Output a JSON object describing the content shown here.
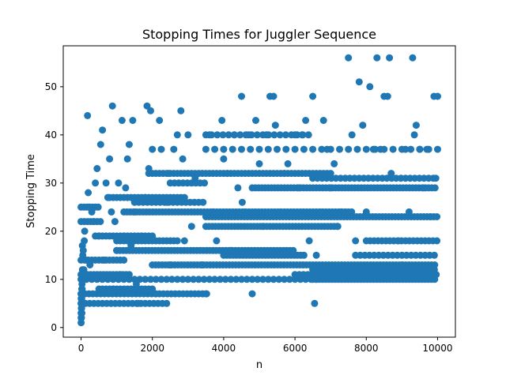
{
  "chart_data": {
    "type": "scatter",
    "title": "Stopping Times for Juggler Sequence",
    "xlabel": "n",
    "ylabel": "Stopping Time",
    "xlim": [
      -500,
      10500
    ],
    "ylim": [
      -2,
      58.5
    ],
    "xticks": [
      0,
      2000,
      4000,
      6000,
      8000,
      10000
    ],
    "yticks": [
      0,
      10,
      20,
      30,
      40,
      50
    ],
    "grid": false,
    "legend": "none",
    "color": "#1f77b4",
    "points": [
      [
        1,
        1
      ],
      [
        2,
        3
      ],
      [
        3,
        6
      ],
      [
        4,
        2
      ],
      [
        5,
        5
      ],
      [
        6,
        2
      ],
      [
        7,
        4
      ],
      [
        8,
        2
      ],
      [
        9,
        7
      ],
      [
        10,
        7
      ],
      [
        11,
        4
      ],
      [
        12,
        7
      ],
      [
        13,
        4
      ],
      [
        14,
        7
      ],
      [
        15,
        4
      ],
      [
        16,
        3
      ],
      [
        17,
        6
      ],
      [
        18,
        3
      ],
      [
        19,
        8
      ],
      [
        20,
        3
      ],
      [
        25,
        9
      ],
      [
        30,
        8
      ],
      [
        37,
        17
      ],
      [
        40,
        12
      ],
      [
        48,
        15
      ],
      [
        50,
        11
      ],
      [
        60,
        16
      ],
      [
        77,
        12
      ],
      [
        90,
        18
      ],
      [
        100,
        20
      ],
      [
        120,
        10
      ],
      [
        150,
        14
      ],
      [
        180,
        44
      ],
      [
        200,
        28
      ],
      [
        210,
        25
      ],
      [
        250,
        13
      ],
      [
        300,
        24
      ],
      [
        350,
        22
      ],
      [
        400,
        30
      ],
      [
        450,
        33
      ],
      [
        500,
        19
      ],
      [
        550,
        38
      ],
      [
        600,
        41
      ],
      [
        650,
        14
      ],
      [
        700,
        30
      ],
      [
        750,
        27
      ],
      [
        800,
        35
      ],
      [
        850,
        24
      ],
      [
        880,
        46
      ],
      [
        900,
        8
      ],
      [
        950,
        22
      ],
      [
        1000,
        16
      ],
      [
        1050,
        30
      ],
      [
        1100,
        11
      ],
      [
        1150,
        43
      ],
      [
        1200,
        19
      ],
      [
        1250,
        29
      ],
      [
        1300,
        35
      ],
      [
        1350,
        38
      ],
      [
        1400,
        17
      ],
      [
        1450,
        43
      ],
      [
        1500,
        24
      ],
      [
        1550,
        9
      ],
      [
        1600,
        5
      ],
      [
        1700,
        19
      ],
      [
        1800,
        27
      ],
      [
        1850,
        46
      ],
      [
        1900,
        33
      ],
      [
        1950,
        45
      ],
      [
        2000,
        37
      ],
      [
        2100,
        7
      ],
      [
        2200,
        43
      ],
      [
        2250,
        37
      ],
      [
        2400,
        26
      ],
      [
        2450,
        32
      ],
      [
        2500,
        13
      ],
      [
        2600,
        37
      ],
      [
        2700,
        40
      ],
      [
        2800,
        45
      ],
      [
        2850,
        35
      ],
      [
        2900,
        18
      ],
      [
        3000,
        40
      ],
      [
        3100,
        21
      ],
      [
        3200,
        31
      ],
      [
        3400,
        13
      ],
      [
        3500,
        7
      ],
      [
        3600,
        40
      ],
      [
        3700,
        24
      ],
      [
        3800,
        18
      ],
      [
        3950,
        43
      ],
      [
        4000,
        35
      ],
      [
        4100,
        32
      ],
      [
        4200,
        16
      ],
      [
        4300,
        40
      ],
      [
        4400,
        29
      ],
      [
        4500,
        48
      ],
      [
        4520,
        26
      ],
      [
        4600,
        24
      ],
      [
        4700,
        40
      ],
      [
        4800,
        7
      ],
      [
        4900,
        43
      ],
      [
        5000,
        34
      ],
      [
        5100,
        21
      ],
      [
        5200,
        40
      ],
      [
        5300,
        48
      ],
      [
        5400,
        48
      ],
      [
        5450,
        42
      ],
      [
        5600,
        24
      ],
      [
        5700,
        32
      ],
      [
        5800,
        34
      ],
      [
        6000,
        40
      ],
      [
        6100,
        29
      ],
      [
        6200,
        40
      ],
      [
        6300,
        43
      ],
      [
        6400,
        18
      ],
      [
        6500,
        48
      ],
      [
        6550,
        5
      ],
      [
        6600,
        15
      ],
      [
        6700,
        24
      ],
      [
        6800,
        43
      ],
      [
        6900,
        37
      ],
      [
        7000,
        29
      ],
      [
        7100,
        34
      ],
      [
        7200,
        21
      ],
      [
        7300,
        24
      ],
      [
        7500,
        56
      ],
      [
        7600,
        40
      ],
      [
        7700,
        18
      ],
      [
        7800,
        51
      ],
      [
        7900,
        42
      ],
      [
        8000,
        24
      ],
      [
        8100,
        50
      ],
      [
        8200,
        37
      ],
      [
        8300,
        56
      ],
      [
        8400,
        37
      ],
      [
        8500,
        48
      ],
      [
        8600,
        48
      ],
      [
        8650,
        56
      ],
      [
        8700,
        32
      ],
      [
        8900,
        18
      ],
      [
        9000,
        13
      ],
      [
        9100,
        37
      ],
      [
        9200,
        24
      ],
      [
        9300,
        56
      ],
      [
        9350,
        40
      ],
      [
        9400,
        42
      ],
      [
        9500,
        37
      ],
      [
        9600,
        29
      ],
      [
        9700,
        37
      ],
      [
        9800,
        23
      ],
      [
        9900,
        48
      ],
      [
        9950,
        31
      ],
      [
        10000,
        48
      ]
    ],
    "bands": [
      {
        "x": [
          0,
          2400
        ],
        "y": 5,
        "step": 120
      },
      {
        "x": [
          0,
          3600
        ],
        "y": 7,
        "step": 110
      },
      {
        "x": [
          500,
          2000
        ],
        "y": 8,
        "step": 100
      },
      {
        "x": [
          0,
          6600
        ],
        "y": 10,
        "step": 150
      },
      {
        "x": [
          6500,
          10000
        ],
        "y": 10,
        "step": 90
      },
      {
        "x": [
          0,
          1400
        ],
        "y": 11,
        "step": 90
      },
      {
        "x": [
          6000,
          10000
        ],
        "y": 11,
        "step": 120
      },
      {
        "x": [
          6500,
          10000
        ],
        "y": 12,
        "step": 110
      },
      {
        "x": [
          2000,
          10000
        ],
        "y": 13,
        "step": 90
      },
      {
        "x": [
          0,
          1200
        ],
        "y": 14,
        "step": 100
      },
      {
        "x": [
          4000,
          6300
        ],
        "y": 15,
        "step": 90
      },
      {
        "x": [
          7700,
          10000
        ],
        "y": 15,
        "step": 130
      },
      {
        "x": [
          1000,
          6000
        ],
        "y": 16,
        "step": 90
      },
      {
        "x": [
          1000,
          2700
        ],
        "y": 18,
        "step": 100
      },
      {
        "x": [
          8000,
          10000
        ],
        "y": 18,
        "step": 110
      },
      {
        "x": [
          400,
          2000
        ],
        "y": 19,
        "step": 100
      },
      {
        "x": [
          3500,
          7200
        ],
        "y": 21,
        "step": 90
      },
      {
        "x": [
          0,
          600
        ],
        "y": 22,
        "step": 90
      },
      {
        "x": [
          3500,
          10000
        ],
        "y": 23,
        "step": 90
      },
      {
        "x": [
          1200,
          7600
        ],
        "y": 24,
        "step": 90
      },
      {
        "x": [
          0,
          500
        ],
        "y": 25,
        "step": 80
      },
      {
        "x": [
          1500,
          3500
        ],
        "y": 26,
        "step": 120
      },
      {
        "x": [
          800,
          2900
        ],
        "y": 27,
        "step": 100
      },
      {
        "x": [
          4800,
          10000
        ],
        "y": 29,
        "step": 90
      },
      {
        "x": [
          2500,
          3500
        ],
        "y": 30,
        "step": 120
      },
      {
        "x": [
          6500,
          10000
        ],
        "y": 31,
        "step": 130
      },
      {
        "x": [
          1900,
          7000
        ],
        "y": 32,
        "step": 100
      },
      {
        "x": [
          3500,
          10000
        ],
        "y": 37,
        "step": 250
      },
      {
        "x": [
          3500,
          6400
        ],
        "y": 40,
        "step": 160
      }
    ]
  }
}
